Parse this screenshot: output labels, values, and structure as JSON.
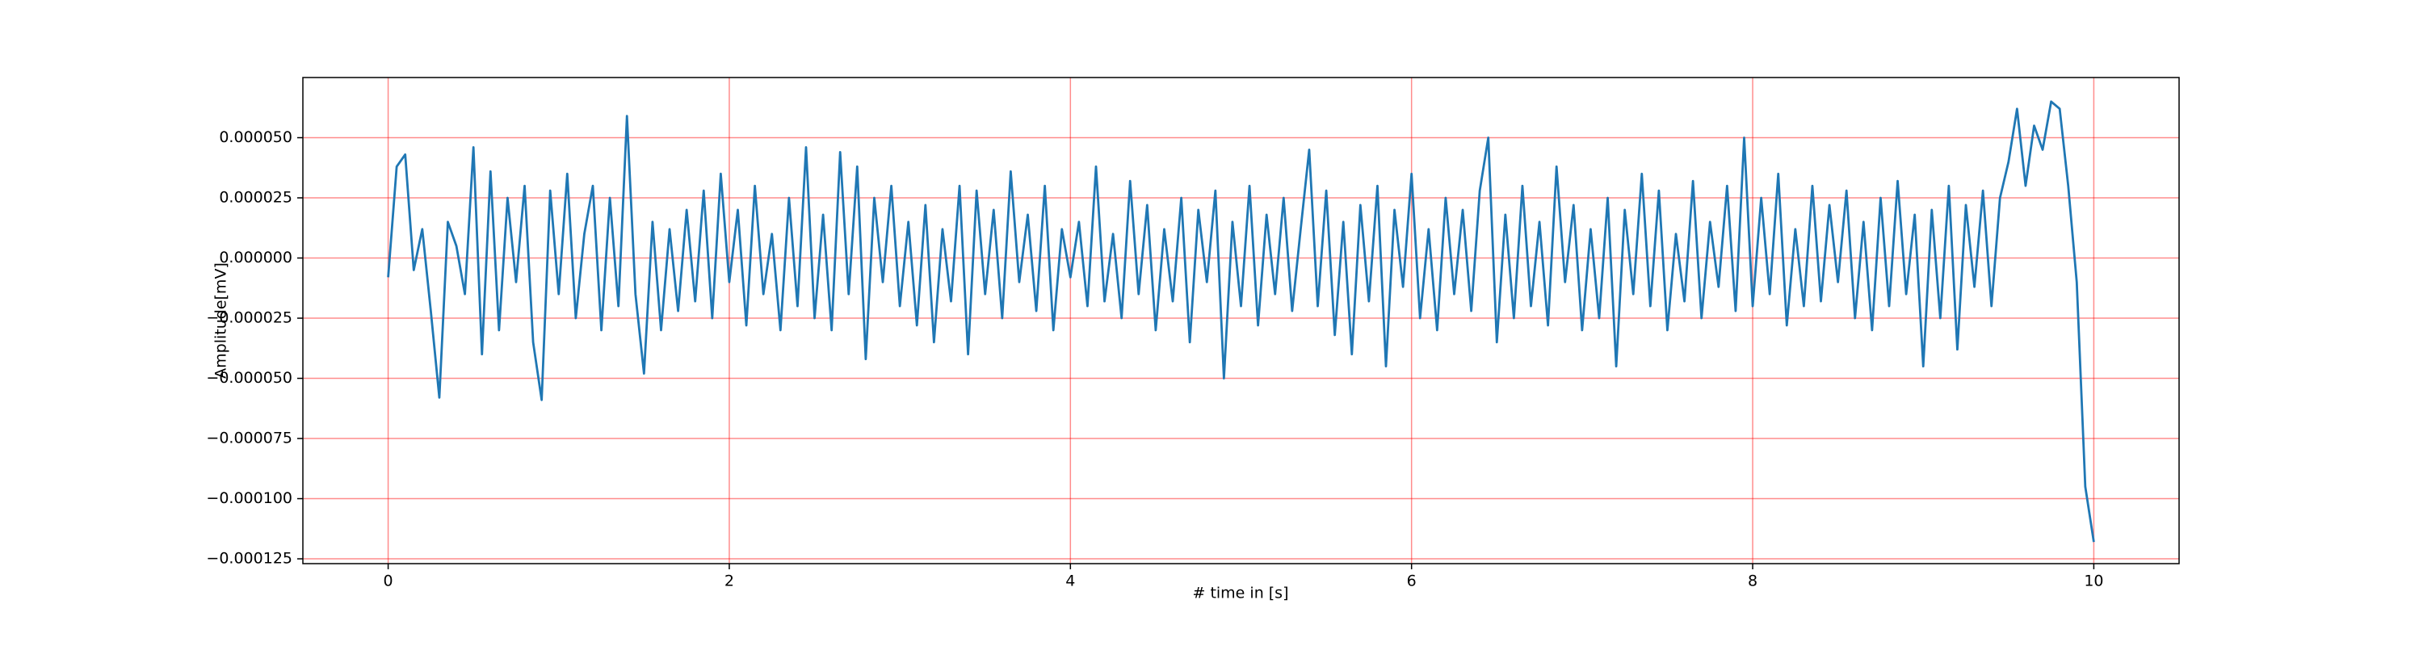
{
  "chart_data": {
    "type": "line",
    "xlabel": "# time in [s]",
    "ylabel": "Amplitude[mV]",
    "color": "#1f77b4",
    "grid": true,
    "grid_color": "#ff0000",
    "xlim": [
      -0.5,
      10.5
    ],
    "ylim": [
      -0.000127,
      7.5e-05
    ],
    "xticks": [
      0,
      2,
      4,
      6,
      8,
      10
    ],
    "yticks": [
      {
        "value": -0.000125,
        "label": "−0.000125"
      },
      {
        "value": -0.0001,
        "label": "−0.000100"
      },
      {
        "value": -7.5e-05,
        "label": "−0.000075"
      },
      {
        "value": -5e-05,
        "label": "−0.000050"
      },
      {
        "value": -2.5e-05,
        "label": "−0.000025"
      },
      {
        "value": 0,
        "label": "0.000000"
      },
      {
        "value": 2.5e-05,
        "label": "0.000025"
      },
      {
        "value": 5e-05,
        "label": "0.000050"
      }
    ],
    "x": [
      0,
      0.05,
      0.1,
      0.15,
      0.2,
      0.25,
      0.3,
      0.35,
      0.4,
      0.45,
      0.5,
      0.55,
      0.6,
      0.65,
      0.7,
      0.75,
      0.8,
      0.85,
      0.9,
      0.95,
      1,
      1.05,
      1.1,
      1.15,
      1.2,
      1.25,
      1.3,
      1.35,
      1.4,
      1.45,
      1.5,
      1.55,
      1.6,
      1.65,
      1.7,
      1.75,
      1.8,
      1.85,
      1.9,
      1.95,
      2,
      2.05,
      2.1,
      2.15,
      2.2,
      2.25,
      2.3,
      2.35,
      2.4,
      2.45,
      2.5,
      2.55,
      2.6,
      2.65,
      2.7,
      2.75,
      2.8,
      2.85,
      2.9,
      2.95,
      3,
      3.05,
      3.1,
      3.15,
      3.2,
      3.25,
      3.3,
      3.35,
      3.4,
      3.45,
      3.5,
      3.55,
      3.6,
      3.65,
      3.7,
      3.75,
      3.8,
      3.85,
      3.9,
      3.95,
      4,
      4.05,
      4.1,
      4.15,
      4.2,
      4.25,
      4.3,
      4.35,
      4.4,
      4.45,
      4.5,
      4.55,
      4.6,
      4.65,
      4.7,
      4.75,
      4.8,
      4.85,
      4.9,
      4.95,
      5,
      5.05,
      5.1,
      5.15,
      5.2,
      5.25,
      5.3,
      5.35,
      5.4,
      5.45,
      5.5,
      5.55,
      5.6,
      5.65,
      5.7,
      5.75,
      5.8,
      5.85,
      5.9,
      5.95,
      6,
      6.05,
      6.1,
      6.15,
      6.2,
      6.25,
      6.3,
      6.35,
      6.4,
      6.45,
      6.5,
      6.55,
      6.6,
      6.65,
      6.7,
      6.75,
      6.8,
      6.85,
      6.9,
      6.95,
      7,
      7.05,
      7.1,
      7.15,
      7.2,
      7.25,
      7.3,
      7.35,
      7.4,
      7.45,
      7.5,
      7.55,
      7.6,
      7.65,
      7.7,
      7.75,
      7.8,
      7.85,
      7.9,
      7.95,
      8,
      8.05,
      8.1,
      8.15,
      8.2,
      8.25,
      8.3,
      8.35,
      8.4,
      8.45,
      8.5,
      8.55,
      8.6,
      8.65,
      8.7,
      8.75,
      8.8,
      8.85,
      8.9,
      8.95,
      9,
      9.05,
      9.1,
      9.15,
      9.2,
      9.25,
      9.3,
      9.35,
      9.4,
      9.45,
      9.5,
      9.55,
      9.6,
      9.65,
      9.7,
      9.75,
      9.8,
      9.85,
      9.9,
      9.95,
      10
    ],
    "values": [
      -8e-06,
      3.8e-05,
      4.3e-05,
      -5e-06,
      1.2e-05,
      -2.2e-05,
      -5.8e-05,
      1.5e-05,
      5e-06,
      -1.5e-05,
      4.6e-05,
      -4e-05,
      3.6e-05,
      -3e-05,
      2.5e-05,
      -1e-05,
      3e-05,
      -3.5e-05,
      -5.9e-05,
      2.8e-05,
      -1.5e-05,
      3.5e-05,
      -2.5e-05,
      1e-05,
      3e-05,
      -3e-05,
      2.5e-05,
      -2e-05,
      5.9e-05,
      -1.5e-05,
      -4.8e-05,
      1.5e-05,
      -3e-05,
      1.2e-05,
      -2.2e-05,
      2e-05,
      -1.8e-05,
      2.8e-05,
      -2.5e-05,
      3.5e-05,
      -1e-05,
      2e-05,
      -2.8e-05,
      3e-05,
      -1.5e-05,
      1e-05,
      -3e-05,
      2.5e-05,
      -2e-05,
      4.6e-05,
      -2.5e-05,
      1.8e-05,
      -3e-05,
      4.4e-05,
      -1.5e-05,
      3.8e-05,
      -4.2e-05,
      2.5e-05,
      -1e-05,
      3e-05,
      -2e-05,
      1.5e-05,
      -2.8e-05,
      2.2e-05,
      -3.5e-05,
      1.2e-05,
      -1.8e-05,
      3e-05,
      -4e-05,
      2.8e-05,
      -1.5e-05,
      2e-05,
      -2.5e-05,
      3.6e-05,
      -1e-05,
      1.8e-05,
      -2.2e-05,
      3e-05,
      -3e-05,
      1.2e-05,
      -8e-06,
      1.5e-05,
      -2e-05,
      3.8e-05,
      -1.8e-05,
      1e-05,
      -2.5e-05,
      3.2e-05,
      -1.5e-05,
      2.2e-05,
      -3e-05,
      1.2e-05,
      -1.8e-05,
      2.5e-05,
      -3.5e-05,
      2e-05,
      -1e-05,
      2.8e-05,
      -5e-05,
      1.5e-05,
      -2e-05,
      3e-05,
      -2.8e-05,
      1.8e-05,
      -1.5e-05,
      2.5e-05,
      -2.2e-05,
      1.2e-05,
      4.5e-05,
      -2e-05,
      2.8e-05,
      -3.2e-05,
      1.5e-05,
      -4e-05,
      2.2e-05,
      -1.8e-05,
      3e-05,
      -4.5e-05,
      2e-05,
      -1.2e-05,
      3.5e-05,
      -2.5e-05,
      1.2e-05,
      -3e-05,
      2.5e-05,
      -1.5e-05,
      2e-05,
      -2.2e-05,
      2.8e-05,
      5e-05,
      -3.5e-05,
      1.8e-05,
      -2.5e-05,
      3e-05,
      -2e-05,
      1.5e-05,
      -2.8e-05,
      3.8e-05,
      -1e-05,
      2.2e-05,
      -3e-05,
      1.2e-05,
      -2.5e-05,
      2.5e-05,
      -4.5e-05,
      2e-05,
      -1.5e-05,
      3.5e-05,
      -2e-05,
      2.8e-05,
      -3e-05,
      1e-05,
      -1.8e-05,
      3.2e-05,
      -2.5e-05,
      1.5e-05,
      -1.2e-05,
      3e-05,
      -2.2e-05,
      5e-05,
      -2e-05,
      2.5e-05,
      -1.5e-05,
      3.5e-05,
      -2.8e-05,
      1.2e-05,
      -2e-05,
      3e-05,
      -1.8e-05,
      2.2e-05,
      -1e-05,
      2.8e-05,
      -2.5e-05,
      1.5e-05,
      -3e-05,
      2.5e-05,
      -2e-05,
      3.2e-05,
      -1.5e-05,
      1.8e-05,
      -4.5e-05,
      2e-05,
      -2.5e-05,
      3e-05,
      -3.8e-05,
      2.2e-05,
      -1.2e-05,
      2.8e-05,
      -2e-05,
      2.5e-05,
      4e-05,
      6.2e-05,
      3e-05,
      5.5e-05,
      4.5e-05,
      6.5e-05,
      6.2e-05,
      3e-05,
      -1e-05,
      -9.5e-05,
      -0.000118
    ]
  }
}
